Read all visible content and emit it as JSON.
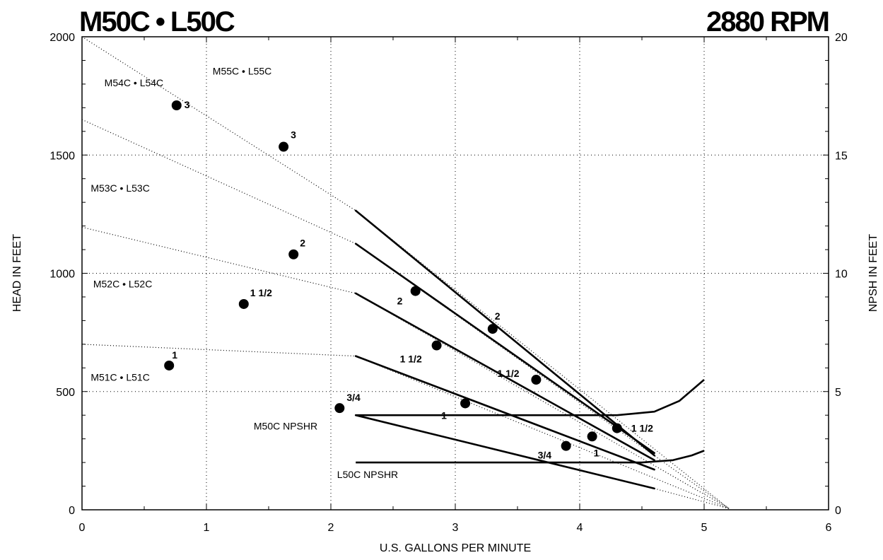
{
  "chart_data": {
    "type": "line",
    "title": "M50C • L50C",
    "subtitle": "2880 RPM",
    "xlabel": "U.S. GALLONS PER MINUTE",
    "ylabel": "HEAD IN FEET",
    "y2label": "NPSH IN FEET",
    "xlim": [
      0,
      6
    ],
    "ylim": [
      0,
      2000
    ],
    "y2lim": [
      0,
      20
    ],
    "x_ticks": [
      "0",
      "1",
      "2",
      "3",
      "4",
      "5",
      "6"
    ],
    "y_ticks": [
      "0",
      "500",
      "1000",
      "1500",
      "2000"
    ],
    "y2_ticks": [
      "0",
      "5",
      "10",
      "15",
      "20"
    ],
    "grid": true,
    "model_labels": [
      {
        "text": "M55C • L55C",
        "x": 1.05,
        "y": 1840
      },
      {
        "text": "M54C • L54C",
        "x": 0.18,
        "y": 1790
      },
      {
        "text": "M53C • L53C",
        "x": 0.07,
        "y": 1345
      },
      {
        "text": "M52C • L52C",
        "x": 0.09,
        "y": 940
      },
      {
        "text": "M51C • L51C",
        "x": 0.07,
        "y": 545
      },
      {
        "text": "M50C  NPSHR",
        "x": 1.38,
        "y": 340
      },
      {
        "text": "L50C  NPSHR",
        "x": 2.05,
        "y": 135
      }
    ],
    "series": [
      {
        "model": "M51C • L51C",
        "values": [
          [
            2.2,
            650
          ],
          [
            4.6,
            170
          ]
        ],
        "extension": [
          [
            0,
            700
          ],
          [
            2.2,
            650
          ],
          [
            5.2,
            5
          ]
        ]
      },
      {
        "model": "M52C • L52C",
        "values": [
          [
            2.2,
            915
          ],
          [
            4.6,
            210
          ]
        ],
        "extension": [
          [
            0,
            1195
          ],
          [
            2.2,
            915
          ],
          [
            5.2,
            5
          ]
        ]
      },
      {
        "model": "M53C • L53C",
        "values": [
          [
            2.2,
            1125
          ],
          [
            4.6,
            240
          ]
        ],
        "extension": [
          [
            0,
            1650
          ],
          [
            2.2,
            1125
          ],
          [
            5.2,
            5
          ]
        ]
      },
      {
        "model": "M54C • L54C",
        "values": [
          [
            2.2,
            1265
          ],
          [
            4.6,
            230
          ]
        ],
        "extension": [
          [
            0,
            2000
          ],
          [
            2.2,
            1265
          ],
          [
            5.2,
            5
          ]
        ]
      },
      {
        "model": "M55C • L55C",
        "values": [
          [
            2.2,
            400
          ],
          [
            4.6,
            90
          ]
        ],
        "extension": [
          [
            4.6,
            90
          ],
          [
            5.2,
            5
          ]
        ]
      }
    ],
    "npshr_curves": [
      {
        "name": "M50C  NPSHR",
        "values": [
          [
            2.2,
            400
          ],
          [
            4.3,
            400
          ],
          [
            4.6,
            415
          ],
          [
            4.8,
            460
          ],
          [
            5.0,
            550
          ]
        ]
      },
      {
        "name": "L50C  NPSHR",
        "values": [
          [
            2.2,
            200
          ],
          [
            4.5,
            200
          ],
          [
            4.75,
            210
          ],
          [
            4.9,
            230
          ],
          [
            5.0,
            250
          ]
        ]
      }
    ],
    "points": [
      {
        "x": 0.76,
        "y": 1710,
        "label": "3"
      },
      {
        "x": 1.62,
        "y": 1535,
        "label": "3"
      },
      {
        "x": 1.7,
        "y": 1080,
        "label": "2"
      },
      {
        "x": 1.3,
        "y": 870,
        "label": "1 1/2"
      },
      {
        "x": 0.7,
        "y": 610,
        "label": "1"
      },
      {
        "x": 2.07,
        "y": 430,
        "label": "3/4"
      },
      {
        "x": 2.68,
        "y": 925,
        "label": "2"
      },
      {
        "x": 3.3,
        "y": 765,
        "label": "2"
      },
      {
        "x": 2.85,
        "y": 695,
        "label": "1 1/2"
      },
      {
        "x": 3.65,
        "y": 550,
        "label": "1 1/2"
      },
      {
        "x": 3.08,
        "y": 450,
        "label": "1"
      },
      {
        "x": 4.1,
        "y": 310,
        "label": "1"
      },
      {
        "x": 3.89,
        "y": 270,
        "label": "3/4"
      },
      {
        "x": 4.3,
        "y": 345,
        "label": "1 1/2"
      }
    ]
  }
}
